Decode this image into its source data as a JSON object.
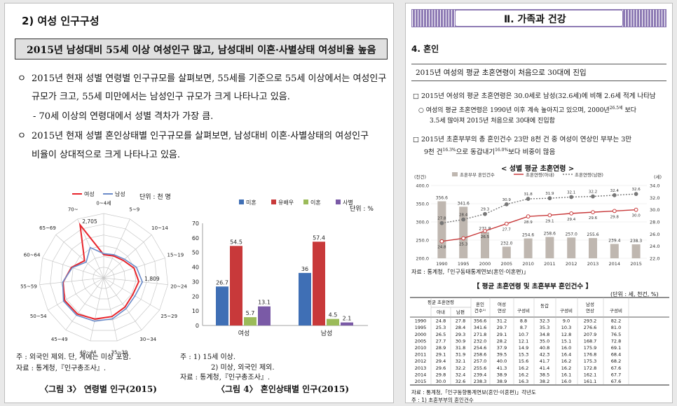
{
  "left_page": {
    "section_title": "2) 여성 인구구성",
    "headline": "2015년 남성대비 55세 이상 여성인구 많고, 남성대비 이혼·사별상태 여성비율 높음",
    "bullet1_line1": "2015년 현재 성별 연령별 인구규모를 살펴보면, 55세를 기준으로 55세 이상에서는 여성인구",
    "bullet1_line2": "규모가 크고, 55세 미만에서는 남성인구 규모가 크게 나타나고 있음.",
    "sub1": "- 70세 이상의 연령대에서 성별 격차가 가장 큼.",
    "bullet2_line1": "2015년 현재 성별 혼인상태별 인구규모를 살펴보면, 남성대비 이혼·사별상태의 여성인구",
    "bullet2_line2": "비율이 상대적으로 크게 나타나고 있음.",
    "bullet_symbol": "ㅇ",
    "fig3": {
      "caption": "〈그림 3〉 연령별 인구(2015)",
      "unit": "단위 : 천 명",
      "legend": [
        "여성",
        "남성"
      ],
      "note_l1": "주  : 외국인 제외. 단, 계에는 미상 포함.",
      "note_l2": "자료 : 통계청,『인구총조사』."
    },
    "fig4": {
      "caption": "〈그림 4〉 혼인상태별 인구(2015)",
      "unit": "단위 : %",
      "note_l1": "주  : 1) 15세 이상.",
      "note_l2": "2) 미상, 외국인 제외.",
      "note_l3": "자료 : 통계청,『인구총조사』."
    }
  },
  "right_page": {
    "header": "Ⅱ. 가족과 건강",
    "section": "4. 혼인",
    "headline": "2015년 여성의 평균 초혼연령이 처음으로 30대에 진입",
    "b1": "□ 2015년 여성의 평균 초혼연령은 30.0세로 남성(32.6세)에 비해 2.6세 적게 나타남",
    "b1s1": "○ 여성의 평균 초혼연령은 1990년 이후 계속 높아지고 있으며, 2000년",
    "b1s1_sup": "26.5세",
    "b1s1_end": " 보다",
    "b1s2": "3.5세 많아져 2015년 처음으로 30대에 진입함",
    "b2l1": "□ 2015년 초혼부부의 총 혼인건수 23만 8천 건 중 여성이 연상인 부부는 3만",
    "b2l2a": "9천 건",
    "b2l2_sup1": "16.3%",
    "b2l2b": "으로 동갑내기",
    "b2l2_sup2": "16.0%",
    "b2l2c": "보다 비중이 많음",
    "chart_title": "< 성별 평균 초혼연령 >",
    "unit_left": "(천건)",
    "unit_right": "(세)",
    "source": "자료 : 통계청,「인구동태통계연보(혼인·이혼편)」",
    "table_title": "【 평균 초혼연령 및 초혼부부 혼인건수 】",
    "table_unit": "(단위 : 세, 천건, %)",
    "table_source": "자료 : 통계청,「인구동향통계연보(혼인·이혼편)」각년도",
    "table_note": "주 : 1) 초혼부부의 혼인건수"
  },
  "table": {
    "h_age": "평균 초혼연령",
    "h_f": "아내",
    "h_m": "남편",
    "h_cnt": "혼인\n건수¹⁾",
    "h_fo": "여성\n연상",
    "h_same": "동갑",
    "h_mo": "남성\n연상",
    "h_ratio": "구성비",
    "rows": [
      [
        "1990",
        "24.8",
        "27.8",
        "356.6",
        "31.2",
        "8.8",
        "32.3",
        "9.0",
        "293.2",
        "82.2"
      ],
      [
        "1995",
        "25.3",
        "28.4",
        "341.6",
        "29.7",
        "8.7",
        "35.3",
        "10.3",
        "276.6",
        "81.0"
      ],
      [
        "2000",
        "26.5",
        "29.3",
        "271.8",
        "29.1",
        "10.7",
        "34.8",
        "12.8",
        "207.9",
        "76.5"
      ],
      [
        "2005",
        "27.7",
        "30.9",
        "232.0",
        "28.2",
        "12.1",
        "35.0",
        "15.1",
        "168.7",
        "72.8"
      ],
      [
        "2010",
        "28.9",
        "31.8",
        "254.6",
        "37.9",
        "14.9",
        "40.8",
        "16.0",
        "175.9",
        "69.1"
      ],
      [
        "2011",
        "29.1",
        "31.9",
        "258.6",
        "39.5",
        "15.3",
        "42.3",
        "16.4",
        "176.8",
        "68.4"
      ],
      [
        "2012",
        "29.4",
        "32.1",
        "257.0",
        "40.0",
        "15.6",
        "41.7",
        "16.2",
        "175.3",
        "68.2"
      ],
      [
        "2013",
        "29.6",
        "32.2",
        "255.6",
        "41.3",
        "16.2",
        "41.4",
        "16.2",
        "172.8",
        "67.6"
      ],
      [
        "2014",
        "29.8",
        "32.4",
        "239.4",
        "38.9",
        "16.2",
        "38.5",
        "16.1",
        "162.1",
        "67.7"
      ],
      [
        "2015",
        "30.0",
        "32.6",
        "238.3",
        "38.9",
        "16.3",
        "38.2",
        "16.0",
        "161.1",
        "67.6"
      ]
    ]
  },
  "chart_data": [
    {
      "type": "radar",
      "title": "",
      "unit": "단위 : 천 명",
      "categories": [
        "0~4세",
        "5~9",
        "10~14",
        "15~19",
        "20~24",
        "25~29",
        "30~34",
        "35~39",
        "40~44",
        "45~49",
        "50~54",
        "55~59",
        "60~64",
        "65~69",
        "70~"
      ],
      "series": [
        {
          "name": "여성",
          "color": "#e8242b",
          "values": [
            1080,
            1120,
            1220,
            1480,
            1640,
            1560,
            1680,
            1840,
            1960,
            2080,
            2100,
            1900,
            1580,
            1200,
            2705
          ]
        },
        {
          "name": "남성",
          "color": "#6a8bc9",
          "values": [
            1130,
            1180,
            1300,
            1600,
            1809,
            1680,
            1770,
            1950,
            2060,
            2150,
            2160,
            1920,
            1540,
            1100,
            1550
          ]
        }
      ],
      "labels": [
        {
          "category": "70~",
          "text": "2,705"
        },
        {
          "category": "20~24",
          "text": "1,809"
        }
      ],
      "rmax": 3000,
      "rings": [
        500,
        1000,
        1500,
        2000,
        2500,
        3000
      ]
    },
    {
      "type": "bar",
      "title": "",
      "unit": "단위 : %",
      "categories": [
        "여성",
        "남성"
      ],
      "series": [
        {
          "name": "미혼",
          "color": "#3f6fb5",
          "values": [
            26.7,
            36
          ]
        },
        {
          "name": "유배우",
          "color": "#c8393a",
          "values": [
            54.5,
            57.4
          ]
        },
        {
          "name": "이혼",
          "color": "#9bbb59",
          "values": [
            5.7,
            4.5
          ]
        },
        {
          "name": "사별",
          "color": "#7a5aa6",
          "values": [
            13.1,
            2.1
          ]
        }
      ],
      "ylim": [
        0,
        70
      ],
      "yticks": [
        0,
        10,
        20,
        30,
        40,
        50,
        60,
        70
      ]
    },
    {
      "type": "bar+line",
      "title": "< 성별 평균 초혼연령 >",
      "categories": [
        "1990",
        "1995",
        "2000",
        "2005",
        "2010",
        "2011",
        "2012",
        "2013",
        "2014",
        "2015"
      ],
      "series": [
        {
          "name": "초혼부부 혼인건수",
          "type": "bar",
          "color": "#bfb7b0",
          "axis": "left",
          "values": [
            356.6,
            341.6,
            271.8,
            232.0,
            254.6,
            258.6,
            257.0,
            255.6,
            239.4,
            238.3
          ]
        },
        {
          "name": "초혼연령(아내)",
          "type": "line",
          "color": "#c8393a",
          "axis": "right",
          "values": [
            24.8,
            25.3,
            26.5,
            27.7,
            28.9,
            29.1,
            29.4,
            29.6,
            29.8,
            30.0
          ]
        },
        {
          "name": "초혼연령(남편)",
          "type": "line",
          "color": "#777777",
          "axis": "right",
          "dashed": true,
          "values": [
            27.8,
            28.4,
            29.3,
            30.9,
            31.8,
            31.9,
            32.1,
            32.2,
            32.4,
            32.6
          ]
        }
      ],
      "ylim_left": [
        200,
        400
      ],
      "yticks_left": [
        200,
        250,
        300,
        350,
        400
      ],
      "ylim_right": [
        22,
        34
      ],
      "yticks_right": [
        22,
        24,
        26,
        28,
        30,
        32,
        34
      ]
    }
  ]
}
